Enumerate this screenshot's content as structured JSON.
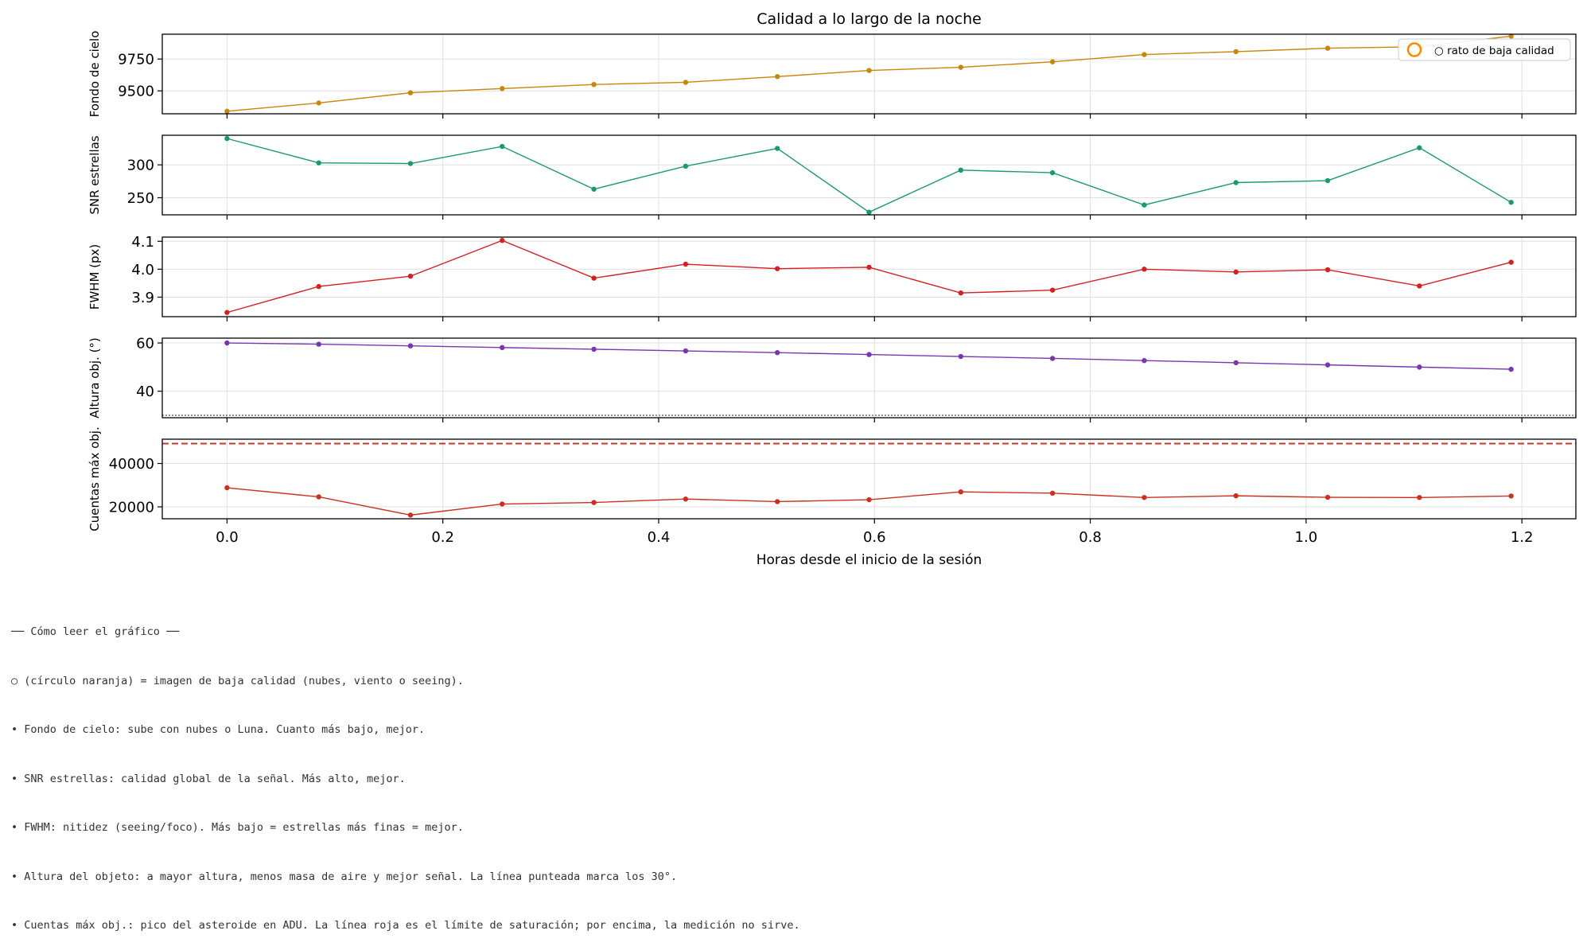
{
  "chart_data": {
    "type": "line",
    "title": "Calidad a lo largo de la noche",
    "xlabel": "Horas desde el inicio de la sesión",
    "xlim": [
      -0.06,
      1.25
    ],
    "xticks": [
      0.0,
      0.2,
      0.4,
      0.6,
      0.8,
      1.0,
      1.2
    ],
    "xtick_labels": [
      "0.0",
      "0.2",
      "0.4",
      "0.6",
      "0.8",
      "1.0",
      "1.2"
    ],
    "x": [
      0.0,
      0.085,
      0.17,
      0.255,
      0.34,
      0.425,
      0.51,
      0.595,
      0.68,
      0.765,
      0.85,
      0.935,
      1.02,
      1.105,
      1.19
    ],
    "grid": true,
    "legend": {
      "label": "○ rato de baja calidad",
      "position": "top-right",
      "marker_color": "#ff8c00"
    },
    "panels": [
      {
        "ylabel": "Fondo de cielo",
        "color": "#c8860a",
        "ylim": [
          9320,
          9945
        ],
        "yticks": [
          9500,
          9750
        ],
        "ytick_labels": [
          "9500",
          "9750"
        ],
        "values": [
          9340,
          9405,
          9485,
          9518,
          9550,
          9567,
          9612,
          9660,
          9685,
          9728,
          9785,
          9808,
          9835,
          9847,
          9930
        ]
      },
      {
        "ylabel": "SNR estrellas",
        "color": "#1a9a72",
        "ylim": [
          224,
          345
        ],
        "yticks": [
          250,
          300
        ],
        "ytick_labels": [
          "250",
          "300"
        ],
        "values": [
          340,
          303,
          302,
          328,
          263,
          298,
          325,
          228,
          292,
          288,
          239,
          273,
          276,
          326,
          243
        ]
      },
      {
        "ylabel": "FWHM (px)",
        "color": "#d42020",
        "ylim": [
          3.83,
          4.115
        ],
        "yticks": [
          3.9,
          4.0,
          4.1
        ],
        "ytick_labels": [
          "3.9",
          "4.0",
          "4.1"
        ],
        "values": [
          3.845,
          3.938,
          3.975,
          4.103,
          3.968,
          4.018,
          4.002,
          4.007,
          3.915,
          3.925,
          4.0,
          3.99,
          3.998,
          3.94,
          4.025
        ]
      },
      {
        "ylabel": "Altura obj. (°)",
        "color": "#7b35b0",
        "ylim": [
          29,
          62
        ],
        "yticks": [
          40,
          60
        ],
        "ytick_labels": [
          "40",
          "60"
        ],
        "values": [
          60.0,
          59.5,
          58.8,
          58.1,
          57.4,
          56.7,
          56.0,
          55.2,
          54.4,
          53.6,
          52.7,
          51.8,
          50.9,
          50.0,
          49.1
        ],
        "reference_line": {
          "value": 30,
          "style": "dotted",
          "color": "#555555"
        }
      },
      {
        "ylabel": "Cuentas máx obj.",
        "color": "#cc3020",
        "ylim": [
          14500,
          51200
        ],
        "yticks": [
          20000,
          40000
        ],
        "ytick_labels": [
          "20000",
          "40000"
        ],
        "values": [
          28800,
          24600,
          16200,
          21300,
          22000,
          23600,
          22400,
          23300,
          26900,
          26300,
          24300,
          25100,
          24400,
          24300,
          25000
        ],
        "reference_line": {
          "value": 49200,
          "style": "dashed",
          "color": "#c0392b"
        }
      }
    ]
  },
  "notes": [
    "── Cómo leer el gráfico ──",
    "○ (círculo naranja) = imagen de baja calidad (nubes, viento o seeing).",
    "• Fondo de cielo: sube con nubes o Luna. Cuanto más bajo, mejor.",
    "• SNR estrellas: calidad global de la señal. Más alto, mejor.",
    "• FWHM: nitidez (seeing/foco). Más bajo = estrellas más finas = mejor.",
    "• Altura del objeto: a mayor altura, menos masa de aire y mejor señal. La línea punteada marca los 30°.",
    "• Cuentas máx obj.: pico del asteroide en ADU. La línea roja es el límite de saturación; por encima, la medición no sirve."
  ]
}
